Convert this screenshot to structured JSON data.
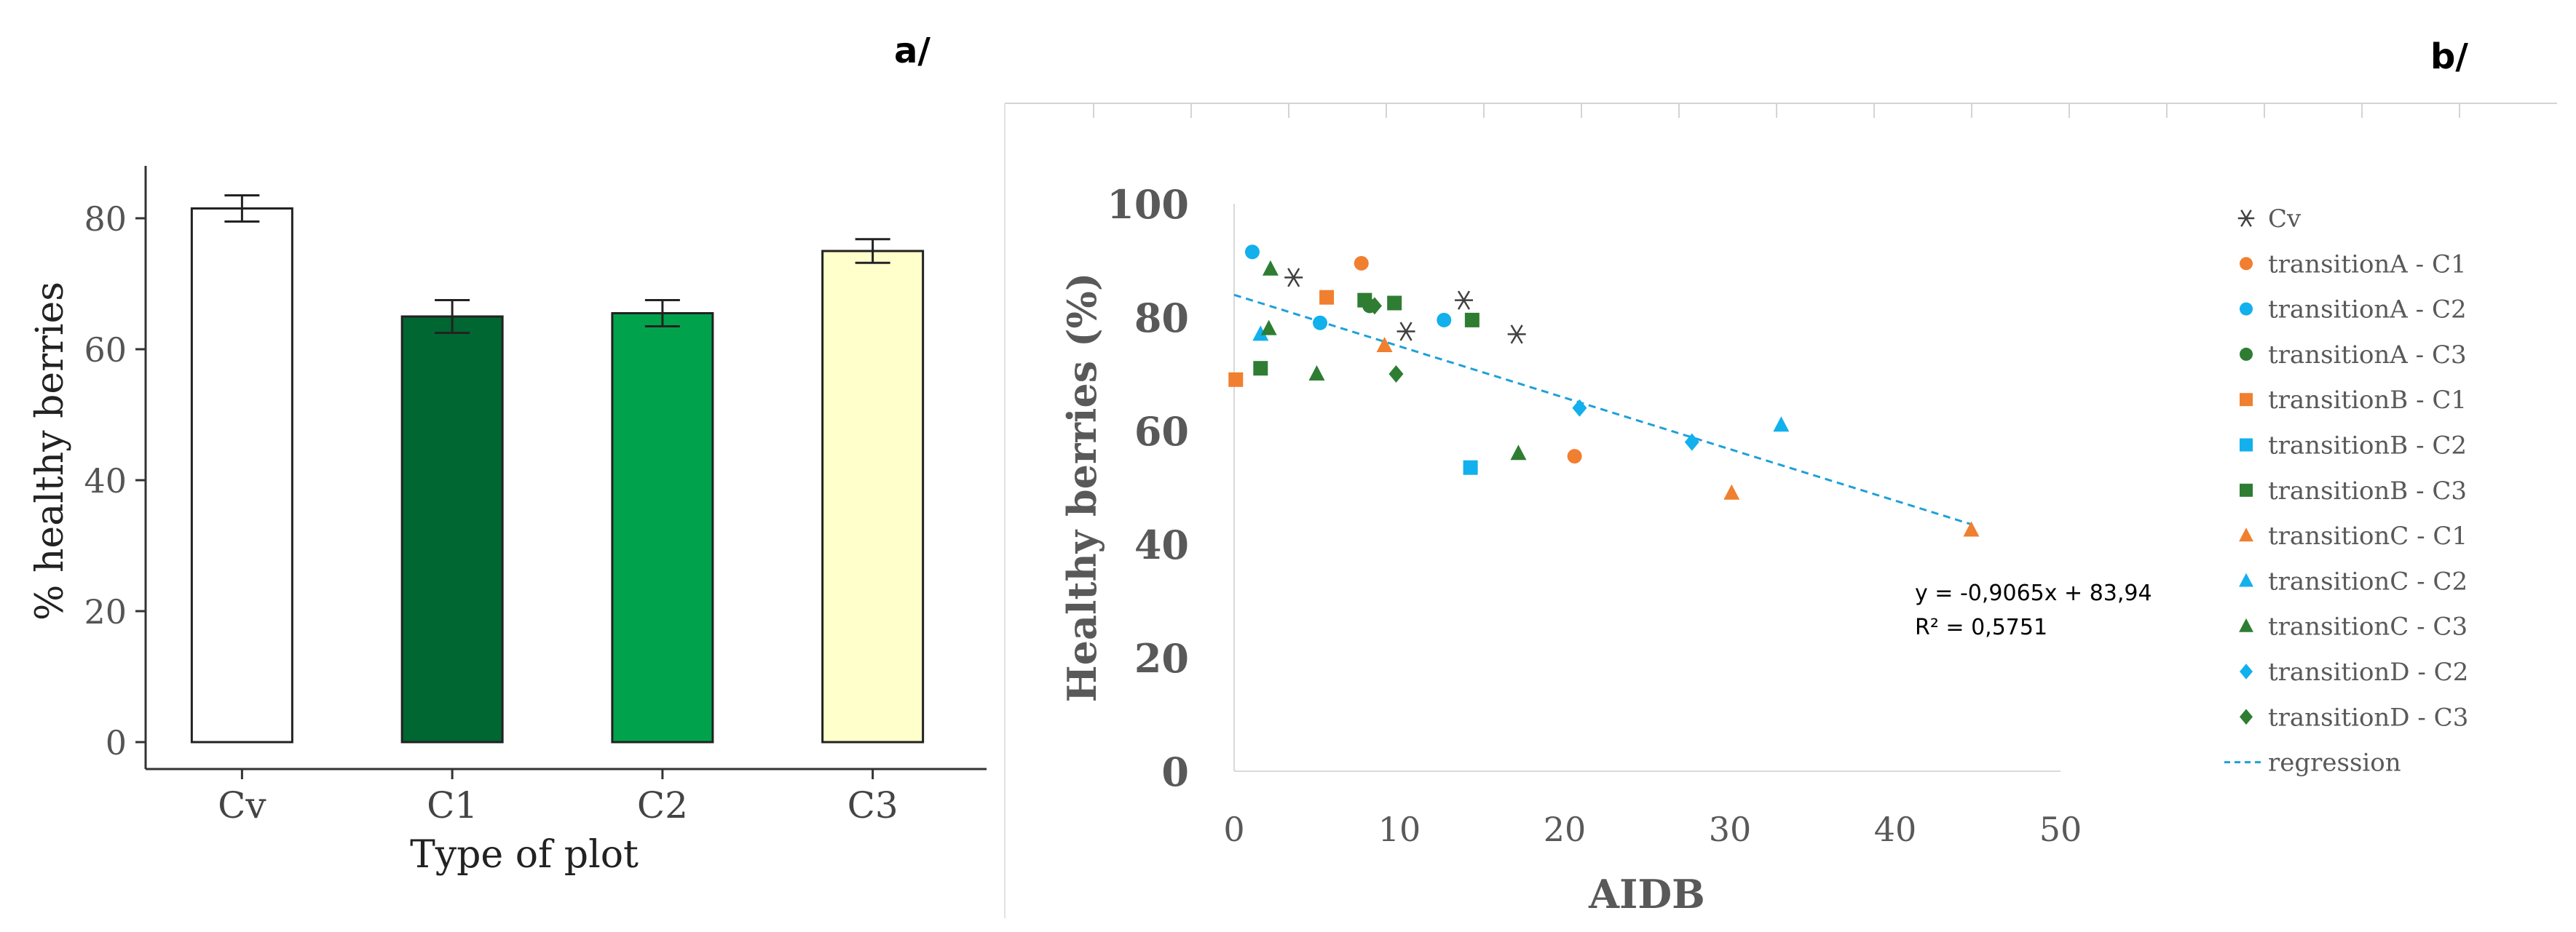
{
  "panel_a_label": "a/",
  "panel_b_label": "b/",
  "chart_data": [
    {
      "type": "bar",
      "panel": "a",
      "title": "",
      "xlabel": "Type of plot",
      "ylabel": "% healthy berries",
      "ylim": [
        0,
        88
      ],
      "yticks": [
        0,
        20,
        40,
        60,
        80
      ],
      "categories": [
        "Cv",
        "C1",
        "C2",
        "C3"
      ],
      "values": [
        81.5,
        65,
        65.5,
        75
      ],
      "errors": [
        2,
        2.5,
        2,
        1.8
      ],
      "colors": [
        "#ffffff",
        "#006632",
        "#00a34b",
        "#ffffcc"
      ]
    },
    {
      "type": "scatter",
      "panel": "b",
      "xlabel": "AIDB",
      "ylabel": "Healthy berries (%)",
      "xlim": [
        0,
        50
      ],
      "ylim": [
        0,
        100
      ],
      "xticks": [
        0,
        10,
        20,
        30,
        40,
        50
      ],
      "yticks": [
        0,
        20,
        40,
        60,
        80,
        100
      ],
      "series": [
        {
          "name": "Cv",
          "marker": "asterisk",
          "color": "#404040",
          "points": [
            [
              3.6,
              87
            ],
            [
              10.4,
              77.5
            ],
            [
              13.9,
              83
            ],
            [
              17.1,
              77
            ]
          ]
        },
        {
          "name": "transitionA - C1",
          "marker": "circle",
          "color": "#f07f2f",
          "points": [
            [
              7.7,
              89.5
            ],
            [
              20.6,
              55.5
            ]
          ]
        },
        {
          "name": "transitionA - C2",
          "marker": "circle",
          "color": "#12b0ec",
          "points": [
            [
              1.1,
              91.5
            ],
            [
              5.2,
              79
            ],
            [
              12.7,
              79.5
            ]
          ]
        },
        {
          "name": "transitionA - C3",
          "marker": "circle",
          "color": "#2e7d32",
          "points": [
            [
              8.2,
              82
            ]
          ]
        },
        {
          "name": "transitionB - C1",
          "marker": "square",
          "color": "#f07f2f",
          "points": [
            [
              0.1,
              69
            ],
            [
              5.6,
              83.5
            ]
          ]
        },
        {
          "name": "transitionB - C2",
          "marker": "square",
          "color": "#12b0ec",
          "points": [
            [
              14.3,
              53.5
            ]
          ]
        },
        {
          "name": "transitionB - C3",
          "marker": "square",
          "color": "#2e7d32",
          "points": [
            [
              1.6,
              71
            ],
            [
              7.9,
              83
            ],
            [
              9.7,
              82.5
            ],
            [
              14.4,
              79.5
            ]
          ]
        },
        {
          "name": "transitionC - C1",
          "marker": "triangle",
          "color": "#f07f2f",
          "points": [
            [
              9.1,
              75
            ],
            [
              30.1,
              49
            ],
            [
              44.6,
              42.5
            ]
          ]
        },
        {
          "name": "transitionC - C2",
          "marker": "triangle",
          "color": "#12b0ec",
          "points": [
            [
              1.6,
              77
            ],
            [
              33.1,
              61
            ]
          ]
        },
        {
          "name": "transitionC - C3",
          "marker": "triangle",
          "color": "#2e7d32",
          "points": [
            [
              2.2,
              88.5
            ],
            [
              2.1,
              78
            ],
            [
              5,
              70
            ],
            [
              17.2,
              56
            ]
          ]
        },
        {
          "name": "transitionD - C2",
          "marker": "diamond",
          "color": "#12b0ec",
          "points": [
            [
              20.9,
              64
            ],
            [
              27.7,
              58
            ]
          ]
        },
        {
          "name": "transitionD - C3",
          "marker": "diamond",
          "color": "#2e7d32",
          "points": [
            [
              8.5,
              82
            ],
            [
              9.8,
              70
            ]
          ]
        }
      ],
      "regression": {
        "name": "regression",
        "slope": -0.9065,
        "intercept": 83.94,
        "x_range": [
          0,
          44.6
        ],
        "color": "#1fa0d8"
      },
      "equation": "y = -0,9065x + 83,94",
      "r_squared": "R² = 0,5751"
    }
  ]
}
